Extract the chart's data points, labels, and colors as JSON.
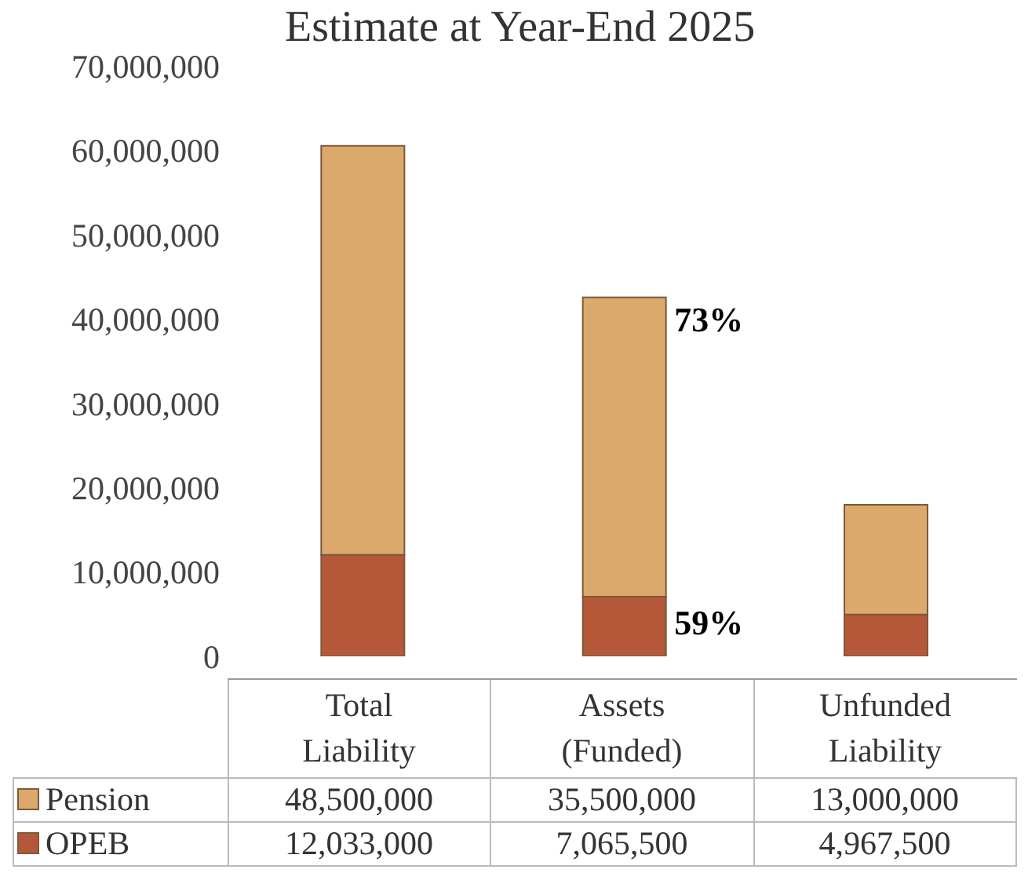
{
  "chart_data": {
    "type": "bar",
    "title": "Estimate at Year-End 2025",
    "categories": [
      "Total\nLiability",
      "Assets\n(Funded)",
      "Unfunded\nLiability"
    ],
    "stacked": true,
    "series": [
      {
        "name": "OPEB",
        "color": "#b5583a",
        "values": [
          12033000,
          7065500,
          4967500
        ],
        "value_labels": [
          "12,033,000",
          "7,065,500",
          "4,967,500"
        ]
      },
      {
        "name": "Pension",
        "color": "#dba96c",
        "values": [
          48500000,
          35500000,
          13000000
        ],
        "value_labels": [
          "48,500,000",
          "35,500,000",
          "13,000,000"
        ]
      }
    ],
    "ylim": [
      0,
      70000000
    ],
    "yticks": [
      {
        "value": 0,
        "label": "0"
      },
      {
        "value": 10000000,
        "label": "10,000,000"
      },
      {
        "value": 20000000,
        "label": "20,000,000"
      },
      {
        "value": 30000000,
        "label": "30,000,000"
      },
      {
        "value": 40000000,
        "label": "40,000,000"
      },
      {
        "value": 50000000,
        "label": "50,000,000"
      },
      {
        "value": 60000000,
        "label": "60,000,000"
      },
      {
        "value": 70000000,
        "label": "70,000,000"
      }
    ],
    "legend": "bottom",
    "annotations": [
      "73%",
      "59%"
    ]
  }
}
